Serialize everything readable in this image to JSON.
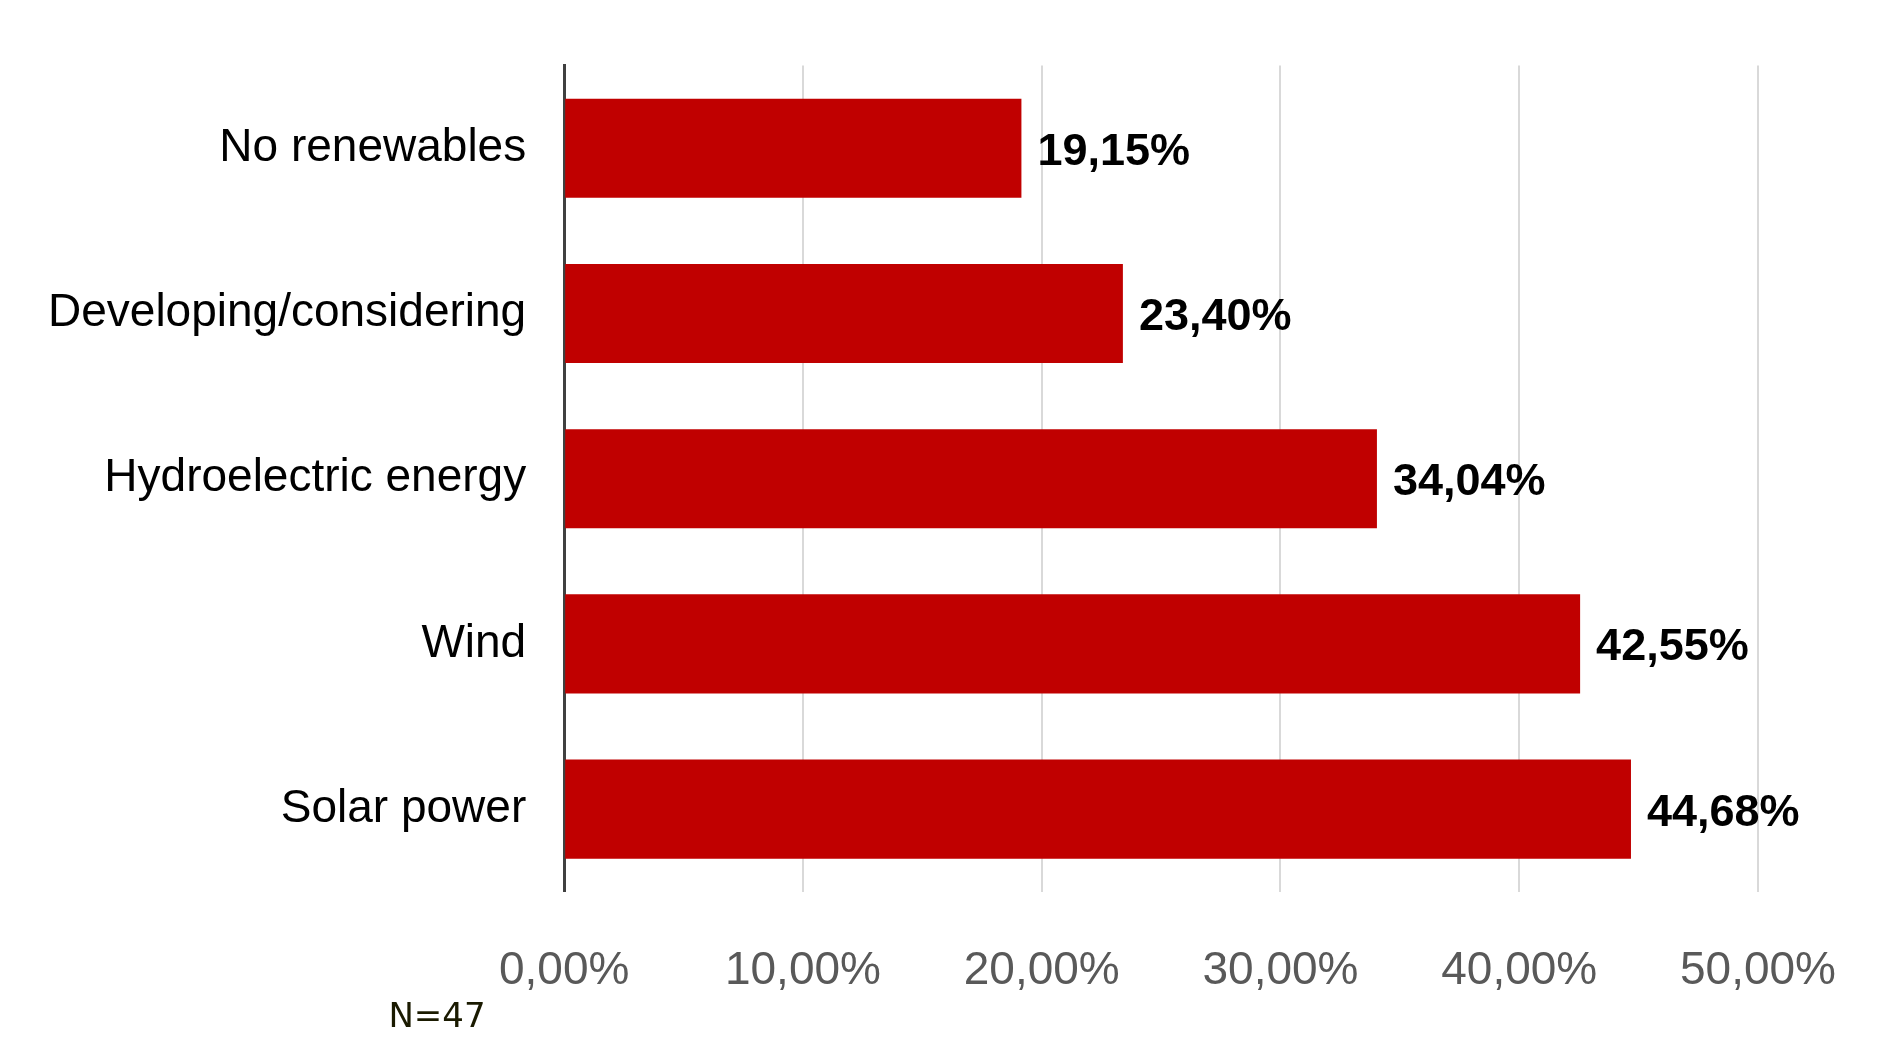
{
  "chart_data": {
    "type": "bar",
    "orientation": "horizontal",
    "categories": [
      "No renewables",
      "Developing/considering",
      "Hydroelectric energy",
      "Wind",
      "Solar power"
    ],
    "values": [
      19.15,
      23.4,
      34.04,
      42.55,
      44.68
    ],
    "value_labels": [
      "19,15%",
      "23,40%",
      "34,04%",
      "42,55%",
      "44,68%"
    ],
    "color": "#c00000",
    "xlim": [
      0,
      50
    ],
    "xticks": [
      {
        "value": 0,
        "label": "0,00%"
      },
      {
        "value": 10,
        "label": "10,00%"
      },
      {
        "value": 20,
        "label": "20,00%"
      },
      {
        "value": 30,
        "label": "30,00%"
      },
      {
        "value": 40,
        "label": "40,00%"
      },
      {
        "value": 50,
        "label": "50,00%"
      }
    ],
    "grid": "x",
    "legend": false,
    "annotations": [
      "N=47"
    ]
  }
}
